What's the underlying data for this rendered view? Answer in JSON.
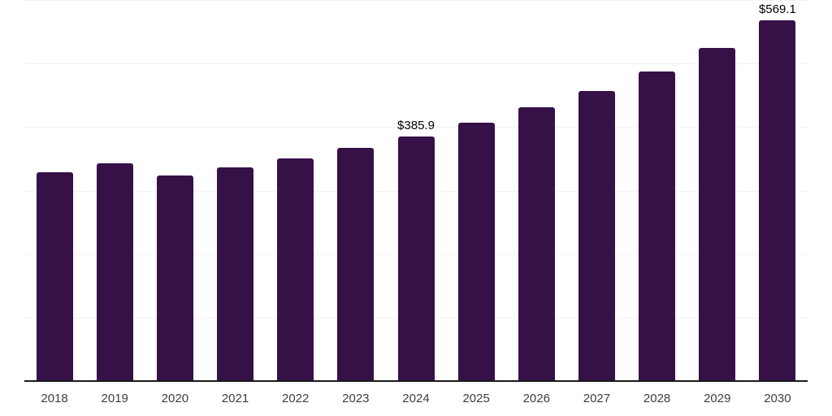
{
  "chart_data": {
    "type": "bar",
    "categories": [
      "2018",
      "2019",
      "2020",
      "2021",
      "2022",
      "2023",
      "2024",
      "2025",
      "2026",
      "2027",
      "2028",
      "2029",
      "2030"
    ],
    "values": [
      330.0,
      344.0,
      325.0,
      337.5,
      351.5,
      368.0,
      385.9,
      407.5,
      432.0,
      458.5,
      489.0,
      526.0,
      569.1
    ],
    "data_labels": {
      "2024": "$385.9",
      "2030": "$569.1"
    },
    "title": "",
    "subtitle": "",
    "xlabel": "",
    "ylabel": "",
    "ylim": [
      0,
      600
    ],
    "gridline_interval": 100,
    "grid": "horizontal",
    "y_axis_tick_labels_visible": false,
    "legend": "none"
  },
  "style": {
    "bar_color": "#351148",
    "axis_line_color": "#1a1a1a",
    "gridline_color": "#f2f2f2",
    "tick_label_color": "#3d3d3d",
    "value_label_color": "#000000",
    "background_color": "#ffffff"
  }
}
